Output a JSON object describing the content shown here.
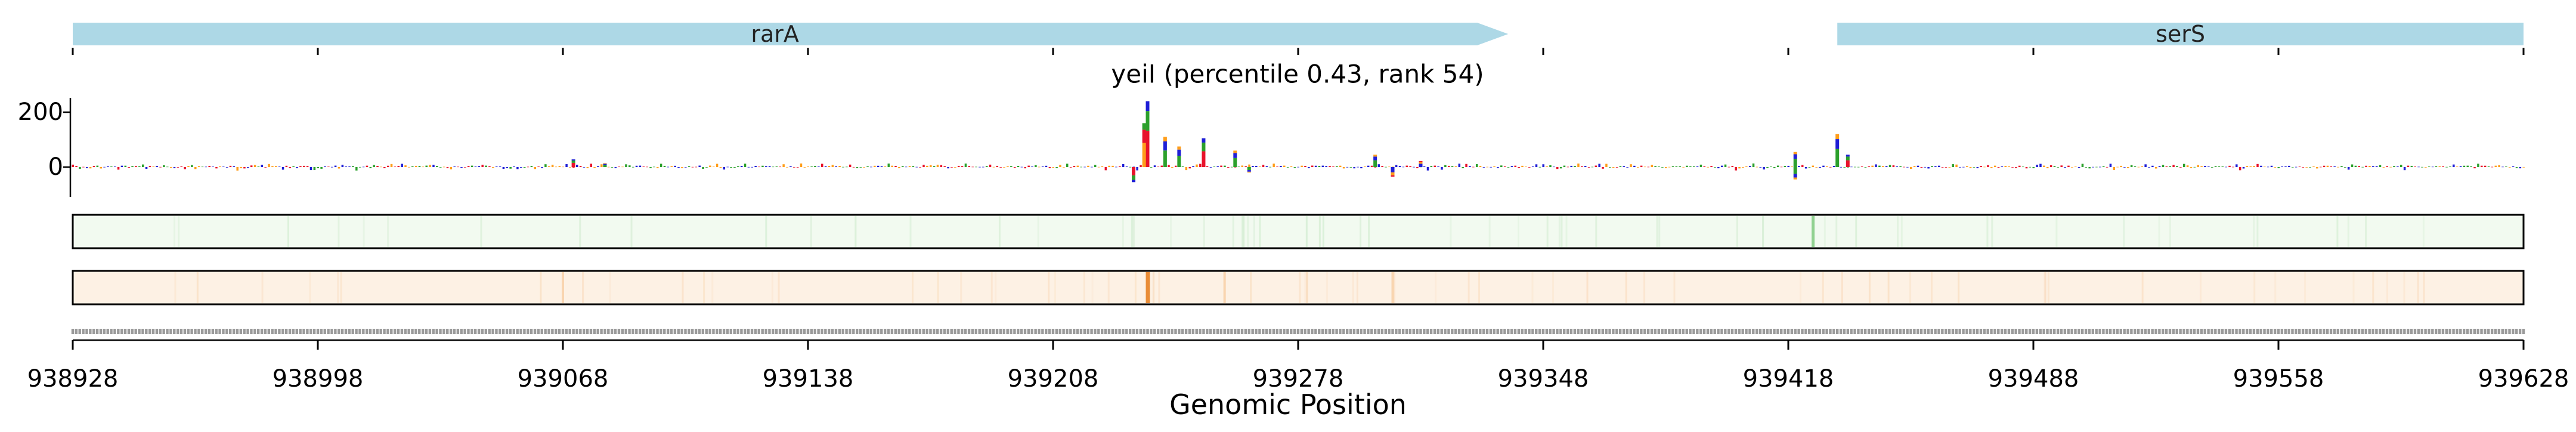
{
  "chart_data": {
    "type": "sequence-logo-track",
    "title": "yeiI (percentile 0.43, rank 54)",
    "xlabel": "Genomic Position",
    "ylabel": "",
    "x_range": [
      938928,
      939628
    ],
    "x_ticks": [
      938928,
      938998,
      939068,
      939138,
      939208,
      939278,
      939348,
      939418,
      939488,
      939558,
      939628
    ],
    "y_ticks": [
      0,
      200
    ],
    "ylim": [
      -60,
      250
    ],
    "genes": [
      {
        "name": "rarA",
        "start": 938928,
        "end": 939338,
        "strand": "+"
      },
      {
        "name": "serS",
        "start": 939432,
        "end": 939628,
        "strand": "-"
      }
    ],
    "contribution_peaks": [
      {
        "x": 939071,
        "y": 28
      },
      {
        "x": 939080,
        "y": 14
      },
      {
        "x": 939235,
        "y": 240
      },
      {
        "x": 939234,
        "y": 160
      },
      {
        "x": 939231,
        "y": -55
      },
      {
        "x": 939240,
        "y": 110
      },
      {
        "x": 939244,
        "y": 75
      },
      {
        "x": 939251,
        "y": 105
      },
      {
        "x": 939260,
        "y": 60
      },
      {
        "x": 939264,
        "y": -20
      },
      {
        "x": 939300,
        "y": 45
      },
      {
        "x": 939305,
        "y": -35
      },
      {
        "x": 939313,
        "y": 22
      },
      {
        "x": 939420,
        "y": 55
      },
      {
        "x": 939420,
        "y": -45
      },
      {
        "x": 939432,
        "y": 120
      },
      {
        "x": 939435,
        "y": 45
      }
    ],
    "green_track": {
      "highlight_x": 939425
    },
    "orange_track": {
      "highlight_x": 939235,
      "faint_x": [
        939068,
        939257,
        939305
      ]
    },
    "colors": {
      "gene_arrow": "#add8e6",
      "A": "#2ca02c",
      "C": "#1f1fd6",
      "G": "#ff9e1b",
      "T": "#e8132b",
      "green_track_bg": "#f2faf0",
      "green_mark": "#7fc97f",
      "orange_track_bg": "#fdf1e4",
      "orange_mark": "#f0a050"
    }
  }
}
